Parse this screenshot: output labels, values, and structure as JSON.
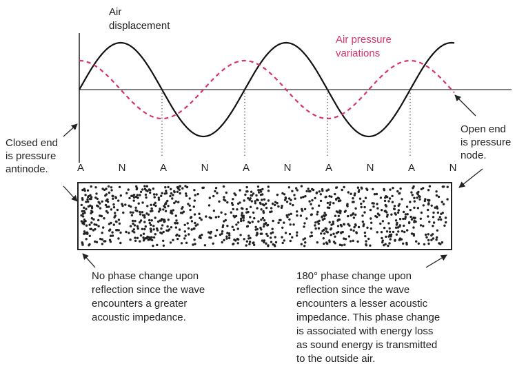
{
  "air_displacement": [
    "Air",
    "displacement"
  ],
  "air_pressure": [
    "Air pressure",
    "variations"
  ],
  "closed_end": [
    "Closed end",
    "is pressure",
    "antinode."
  ],
  "open_end": [
    "Open end",
    "is pressure",
    "node."
  ],
  "nodes": [
    "A",
    "N",
    "A",
    "N",
    "A",
    "N",
    "A",
    "N",
    "A",
    "N"
  ],
  "left_note": [
    "No phase change upon",
    "reflection since the wave",
    "encounters a greater",
    "acoustic impedance."
  ],
  "right_note": [
    "180° phase change upon",
    "reflection since the wave",
    "encounters a lesser acoustic",
    "impedance. This phase change",
    "is associated with energy loss",
    "as sound energy is transmitted",
    "to the outside air."
  ]
}
